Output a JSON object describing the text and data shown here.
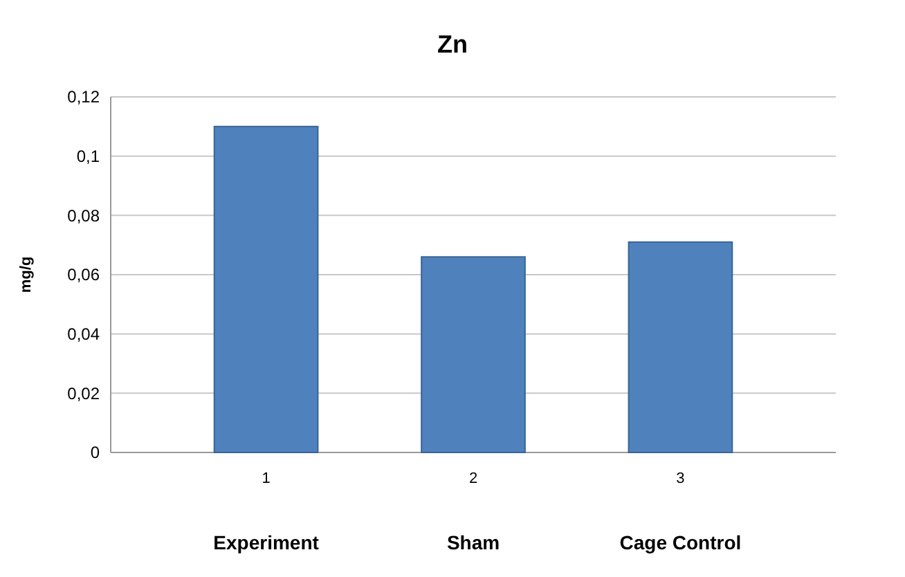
{
  "chart_data": {
    "type": "bar",
    "title": "Zn",
    "ylabel": "mg/g",
    "categories": [
      "1",
      "2",
      "3"
    ],
    "values": [
      0.11,
      0.066,
      0.071
    ],
    "color": "#4f81bd",
    "ylim": [
      0,
      0.12
    ],
    "yticks": [
      {
        "value": 0,
        "label": "0"
      },
      {
        "value": 0.02,
        "label": "0,02"
      },
      {
        "value": 0.04,
        "label": "0,04"
      },
      {
        "value": 0.06,
        "label": "0,06"
      },
      {
        "value": 0.08,
        "label": "0,08"
      },
      {
        "value": 0.1,
        "label": "0,1"
      },
      {
        "value": 0.12,
        "label": "0,12"
      }
    ],
    "grid": true,
    "annotations": [
      "Experiment",
      "Sham",
      "Cage Control"
    ]
  }
}
